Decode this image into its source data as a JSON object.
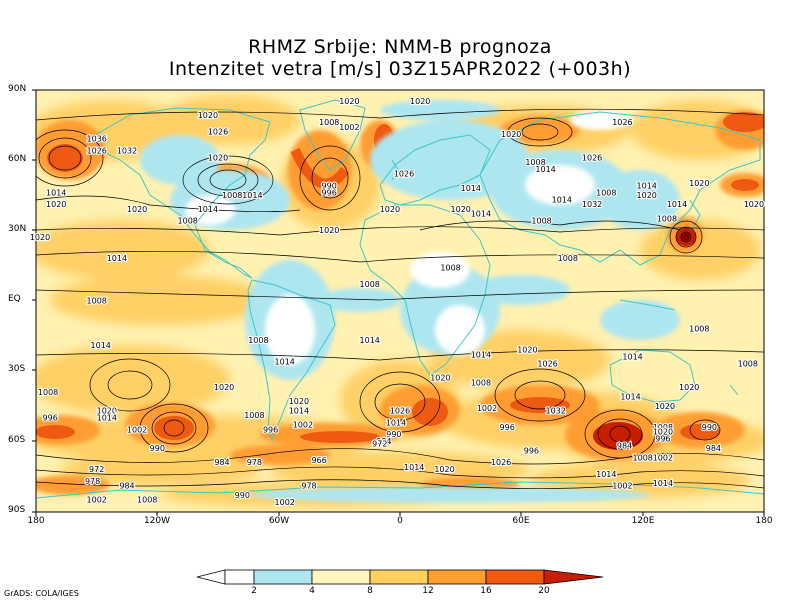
{
  "title": {
    "line1": "RHMZ Srbije: NMM-B prognoza",
    "line2": "Intenzitet vetra [m/s] 03Z15APR2022 (+003h)"
  },
  "axes": {
    "lat_labels": [
      "90N",
      "60N",
      "30N",
      "EQ",
      "30S",
      "60S",
      "90S"
    ],
    "lon_labels": [
      "180",
      "120W",
      "60W",
      "0",
      "60E",
      "120E",
      "180"
    ]
  },
  "colorbar": {
    "levels": [
      "2",
      "4",
      "8",
      "12",
      "16",
      "20"
    ],
    "colors": [
      "#ffffff",
      "#aee6f0",
      "#fff5c0",
      "#ffd060",
      "#ff9f30",
      "#f05a10",
      "#c81e00",
      "#c81e00"
    ]
  },
  "credit": "GrADS: COLA/IGES",
  "pressure_labels": [
    {
      "t": "1020",
      "lon": 10,
      "lat": 84
    },
    {
      "t": "1020",
      "lon": -95,
      "lat": 78
    },
    {
      "t": "1026",
      "lon": -90,
      "lat": 71
    },
    {
      "t": "1036",
      "lon": -150,
      "lat": 68
    },
    {
      "t": "1026",
      "lon": -150,
      "lat": 63
    },
    {
      "t": "1032",
      "lon": -135,
      "lat": 63
    },
    {
      "t": "1020",
      "lon": -90,
      "lat": 60
    },
    {
      "t": "1014",
      "lon": -170,
      "lat": 45
    },
    {
      "t": "1020",
      "lon": -170,
      "lat": 40
    },
    {
      "t": "1020",
      "lon": -130,
      "lat": 38
    },
    {
      "t": "1008",
      "lon": -105,
      "lat": 33
    },
    {
      "t": "1014",
      "lon": -95,
      "lat": 38
    },
    {
      "t": "1008",
      "lon": -83,
      "lat": 44
    },
    {
      "t": "1014",
      "lon": -73,
      "lat": 44
    },
    {
      "t": "1020",
      "lon": -178,
      "lat": 26
    },
    {
      "t": "1014",
      "lon": -140,
      "lat": 17
    },
    {
      "t": "1020",
      "lon": -35,
      "lat": 29
    },
    {
      "t": "1020",
      "lon": -25,
      "lat": 84
    },
    {
      "t": "1008",
      "lon": -35,
      "lat": 75
    },
    {
      "t": "1002",
      "lon": -25,
      "lat": 73
    },
    {
      "t": "996",
      "lon": -35,
      "lat": 45
    },
    {
      "t": "990",
      "lon": -35,
      "lat": 48
    },
    {
      "t": "1026",
      "lon": 2,
      "lat": 53
    },
    {
      "t": "1020",
      "lon": -5,
      "lat": 38
    },
    {
      "t": "1020",
      "lon": 30,
      "lat": 38
    },
    {
      "t": "1014",
      "lon": 40,
      "lat": 36
    },
    {
      "t": "1014",
      "lon": 35,
      "lat": 47
    },
    {
      "t": "1020",
      "lon": 55,
      "lat": 70
    },
    {
      "t": "1008",
      "lon": 67,
      "lat": 58
    },
    {
      "t": "1014",
      "lon": 72,
      "lat": 55
    },
    {
      "t": "1026",
      "lon": 95,
      "lat": 60
    },
    {
      "t": "1026",
      "lon": 110,
      "lat": 75
    },
    {
      "t": "1014",
      "lon": 80,
      "lat": 42
    },
    {
      "t": "1008",
      "lon": 70,
      "lat": 33
    },
    {
      "t": "1032",
      "lon": 95,
      "lat": 40
    },
    {
      "t": "1008",
      "lon": 102,
      "lat": 45
    },
    {
      "t": "1014",
      "lon": 122,
      "lat": 48
    },
    {
      "t": "1020",
      "lon": 122,
      "lat": 44
    },
    {
      "t": "1020",
      "lon": 148,
      "lat": 49
    },
    {
      "t": "1014",
      "lon": 137,
      "lat": 40
    },
    {
      "t": "1008",
      "lon": 132,
      "lat": 34
    },
    {
      "t": "1008",
      "lon": 25,
      "lat": 13
    },
    {
      "t": "1008",
      "lon": 83,
      "lat": 17
    },
    {
      "t": "1008",
      "lon": -15,
      "lat": 6
    },
    {
      "t": "1008",
      "lon": -150,
      "lat": -1
    },
    {
      "t": "1014",
      "lon": -148,
      "lat": -20
    },
    {
      "t": "1008",
      "lon": -70,
      "lat": -18
    },
    {
      "t": "1014",
      "lon": -15,
      "lat": -18
    },
    {
      "t": "1014",
      "lon": -57,
      "lat": -27
    },
    {
      "t": "1020",
      "lon": -87,
      "lat": -38
    },
    {
      "t": "1014",
      "lon": 40,
      "lat": -24
    },
    {
      "t": "1020",
      "lon": 63,
      "lat": -22
    },
    {
      "t": "1026",
      "lon": 73,
      "lat": -28
    },
    {
      "t": "1014",
      "lon": 115,
      "lat": -25
    },
    {
      "t": "1020",
      "lon": 143,
      "lat": -38
    },
    {
      "t": "1008",
      "lon": 172,
      "lat": -28
    },
    {
      "t": "1008",
      "lon": 148,
      "lat": -13
    },
    {
      "t": "1008",
      "lon": -174,
      "lat": -40
    },
    {
      "t": "1020",
      "lon": -145,
      "lat": -48
    },
    {
      "t": "1014",
      "lon": -145,
      "lat": -51
    },
    {
      "t": "996",
      "lon": -173,
      "lat": -51
    },
    {
      "t": "1002",
      "lon": -130,
      "lat": -56
    },
    {
      "t": "1020",
      "lon": -50,
      "lat": -44
    },
    {
      "t": "1014",
      "lon": -50,
      "lat": -48
    },
    {
      "t": "1008",
      "lon": -72,
      "lat": -50
    },
    {
      "t": "996",
      "lon": -64,
      "lat": -56
    },
    {
      "t": "1002",
      "lon": -48,
      "lat": -54
    },
    {
      "t": "1020",
      "lon": 20,
      "lat": -34
    },
    {
      "t": "1026",
      "lon": 0,
      "lat": -48
    },
    {
      "t": "1014",
      "lon": -2,
      "lat": -53
    },
    {
      "t": "990",
      "lon": -3,
      "lat": -58
    },
    {
      "t": "984",
      "lon": -8,
      "lat": -61
    },
    {
      "t": "972",
      "lon": -10,
      "lat": -62
    },
    {
      "t": "1008",
      "lon": 40,
      "lat": -36
    },
    {
      "t": "1002",
      "lon": 43,
      "lat": -47
    },
    {
      "t": "996",
      "lon": 53,
      "lat": -55
    },
    {
      "t": "1032",
      "lon": 77,
      "lat": -48
    },
    {
      "t": "1014",
      "lon": 114,
      "lat": -42
    },
    {
      "t": "1020",
      "lon": 131,
      "lat": -46
    },
    {
      "t": "1008",
      "lon": 130,
      "lat": -55
    },
    {
      "t": "1020",
      "lon": 130,
      "lat": -57
    },
    {
      "t": "996",
      "lon": 130,
      "lat": -60
    },
    {
      "t": "984",
      "lon": 111,
      "lat": -63
    },
    {
      "t": "990",
      "lon": 153,
      "lat": -55
    },
    {
      "t": "984",
      "lon": 155,
      "lat": -64
    },
    {
      "t": "990",
      "lon": -120,
      "lat": -64
    },
    {
      "t": "984",
      "lon": -88,
      "lat": -70
    },
    {
      "t": "978",
      "lon": -72,
      "lat": -70
    },
    {
      "t": "966",
      "lon": -40,
      "lat": -69
    },
    {
      "t": "972",
      "lon": -150,
      "lat": -73
    },
    {
      "t": "978",
      "lon": -152,
      "lat": -78
    },
    {
      "t": "984",
      "lon": -135,
      "lat": -80
    },
    {
      "t": "1002",
      "lon": -150,
      "lat": -86
    },
    {
      "t": "1008",
      "lon": -125,
      "lat": -86
    },
    {
      "t": "990",
      "lon": -78,
      "lat": -84
    },
    {
      "t": "978",
      "lon": -45,
      "lat": -80
    },
    {
      "t": "1002",
      "lon": -57,
      "lat": -87
    },
    {
      "t": "1014",
      "lon": 7,
      "lat": -72
    },
    {
      "t": "1020",
      "lon": 22,
      "lat": -73
    },
    {
      "t": "1026",
      "lon": 50,
      "lat": -70
    },
    {
      "t": "996",
      "lon": 65,
      "lat": -65
    },
    {
      "t": "1008",
      "lon": 120,
      "lat": -68
    },
    {
      "t": "1002",
      "lon": 130,
      "lat": -68
    },
    {
      "t": "1014",
      "lon": 102,
      "lat": -75
    },
    {
      "t": "1002",
      "lon": 110,
      "lat": -80
    },
    {
      "t": "1014",
      "lon": 130,
      "lat": -79
    },
    {
      "t": "1020",
      "lon": 175,
      "lat": 40
    }
  ]
}
